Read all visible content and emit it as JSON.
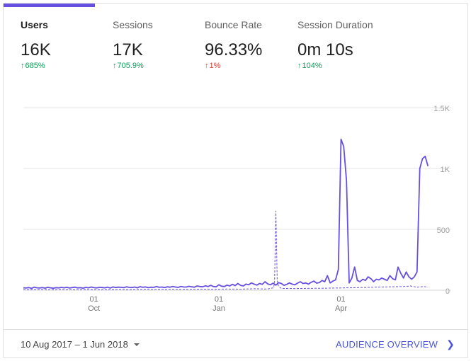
{
  "tabs": [
    {
      "title": "Users",
      "value": "16K",
      "change": "685%",
      "direction": "up",
      "color": "#0f9d58"
    },
    {
      "title": "Sessions",
      "value": "17K",
      "change": "705.9%",
      "direction": "up",
      "color": "#0f9d58"
    },
    {
      "title": "Bounce Rate",
      "value": "96.33%",
      "change": "1%",
      "direction": "up",
      "color": "#db4437"
    },
    {
      "title": "Session Duration",
      "value": "0m 10s",
      "change": "104%",
      "direction": "up",
      "color": "#0f9d58"
    }
  ],
  "active_tab": 0,
  "chart_data": {
    "type": "line",
    "x_tick_labels": [
      {
        "day": "01",
        "month": "Oct"
      },
      {
        "day": "01",
        "month": "Jan"
      },
      {
        "day": "01",
        "month": "Apr"
      }
    ],
    "y_tick_labels": [
      "1.5K",
      "1K",
      "500",
      "0"
    ],
    "ylim": [
      0,
      1500
    ],
    "grid": true,
    "series": [
      {
        "style": "solid",
        "color": "#6650e0",
        "points": [
          [
            0,
            20
          ],
          [
            2,
            18
          ],
          [
            4,
            22
          ],
          [
            6,
            15
          ],
          [
            8,
            25
          ],
          [
            10,
            20
          ],
          [
            12,
            18
          ],
          [
            14,
            22
          ],
          [
            16,
            17
          ],
          [
            18,
            24
          ],
          [
            20,
            20
          ],
          [
            22,
            16
          ],
          [
            24,
            21
          ],
          [
            26,
            19
          ],
          [
            28,
            23
          ],
          [
            30,
            20
          ],
          [
            32,
            24
          ],
          [
            34,
            18
          ],
          [
            36,
            22
          ],
          [
            38,
            25
          ],
          [
            40,
            19
          ],
          [
            42,
            21
          ],
          [
            44,
            17
          ],
          [
            46,
            23
          ],
          [
            48,
            20
          ],
          [
            50,
            26
          ],
          [
            52,
            21
          ],
          [
            54,
            19
          ],
          [
            56,
            24
          ],
          [
            58,
            22
          ],
          [
            60,
            20
          ],
          [
            62,
            25
          ],
          [
            64,
            18
          ],
          [
            66,
            27
          ],
          [
            68,
            22
          ],
          [
            70,
            25
          ],
          [
            72,
            24
          ],
          [
            74,
            21
          ],
          [
            76,
            28
          ],
          [
            78,
            23
          ],
          [
            80,
            22
          ],
          [
            82,
            26
          ],
          [
            84,
            20
          ],
          [
            86,
            29
          ],
          [
            88,
            24
          ],
          [
            90,
            27
          ],
          [
            92,
            21
          ],
          [
            94,
            25
          ],
          [
            96,
            23
          ],
          [
            98,
            30
          ],
          [
            100,
            24
          ],
          [
            102,
            26
          ],
          [
            104,
            22
          ],
          [
            106,
            28
          ],
          [
            108,
            25
          ],
          [
            110,
            30
          ],
          [
            112,
            26
          ],
          [
            114,
            23
          ],
          [
            116,
            31
          ],
          [
            118,
            27
          ],
          [
            120,
            26
          ],
          [
            122,
            32
          ],
          [
            124,
            28
          ],
          [
            126,
            25
          ],
          [
            128,
            35
          ],
          [
            130,
            30
          ],
          [
            132,
            28
          ],
          [
            134,
            36
          ],
          [
            136,
            30
          ],
          [
            138,
            40
          ],
          [
            140,
            30
          ],
          [
            142,
            28
          ],
          [
            144,
            45
          ],
          [
            146,
            33
          ],
          [
            148,
            30
          ],
          [
            150,
            42
          ],
          [
            152,
            35
          ],
          [
            154,
            48
          ],
          [
            156,
            38
          ],
          [
            158,
            55
          ],
          [
            160,
            40
          ],
          [
            162,
            35
          ],
          [
            164,
            50
          ],
          [
            166,
            45
          ],
          [
            168,
            60
          ],
          [
            170,
            50
          ],
          [
            172,
            42
          ],
          [
            174,
            55
          ],
          [
            176,
            48
          ],
          [
            178,
            70
          ],
          [
            180,
            52
          ],
          [
            182,
            45
          ],
          [
            184,
            58
          ],
          [
            186,
            42
          ],
          [
            188,
            62
          ],
          [
            190,
            55
          ],
          [
            192,
            40
          ],
          [
            194,
            48
          ],
          [
            196,
            60
          ],
          [
            198,
            50
          ],
          [
            200,
            45
          ],
          [
            202,
            58
          ],
          [
            204,
            70
          ],
          [
            206,
            55
          ],
          [
            208,
            60
          ],
          [
            210,
            50
          ],
          [
            212,
            65
          ],
          [
            214,
            75
          ],
          [
            216,
            58
          ],
          [
            218,
            62
          ],
          [
            220,
            80
          ],
          [
            222,
            70
          ],
          [
            224,
            120
          ],
          [
            226,
            60
          ],
          [
            228,
            75
          ],
          [
            230,
            85
          ],
          [
            232,
            170
          ],
          [
            234,
            1240
          ],
          [
            236,
            1180
          ],
          [
            238,
            900
          ],
          [
            240,
            60
          ],
          [
            242,
            100
          ],
          [
            244,
            190
          ],
          [
            246,
            80
          ],
          [
            248,
            70
          ],
          [
            250,
            90
          ],
          [
            252,
            80
          ],
          [
            254,
            110
          ],
          [
            256,
            95
          ],
          [
            258,
            70
          ],
          [
            260,
            90
          ],
          [
            262,
            85
          ],
          [
            264,
            100
          ],
          [
            266,
            90
          ],
          [
            268,
            80
          ],
          [
            270,
            120
          ],
          [
            272,
            95
          ],
          [
            274,
            85
          ],
          [
            276,
            190
          ],
          [
            278,
            140
          ],
          [
            280,
            100
          ],
          [
            282,
            150
          ],
          [
            284,
            110
          ],
          [
            286,
            90
          ],
          [
            288,
            110
          ],
          [
            290,
            150
          ],
          [
            292,
            1000
          ],
          [
            294,
            1080
          ],
          [
            296,
            1100
          ],
          [
            298,
            1020
          ]
        ]
      },
      {
        "style": "dashed",
        "color": "#6650e0",
        "points": [
          [
            0,
            5
          ],
          [
            10,
            6
          ],
          [
            20,
            5
          ],
          [
            30,
            6
          ],
          [
            40,
            5
          ],
          [
            50,
            7
          ],
          [
            60,
            6
          ],
          [
            70,
            7
          ],
          [
            80,
            6
          ],
          [
            90,
            8
          ],
          [
            100,
            7
          ],
          [
            110,
            8
          ],
          [
            120,
            7
          ],
          [
            130,
            9
          ],
          [
            140,
            8
          ],
          [
            150,
            10
          ],
          [
            160,
            9
          ],
          [
            170,
            12
          ],
          [
            180,
            10
          ],
          [
            184,
            20
          ],
          [
            185,
            50
          ],
          [
            186,
            650
          ],
          [
            187,
            80
          ],
          [
            188,
            30
          ],
          [
            190,
            15
          ],
          [
            200,
            14
          ],
          [
            210,
            15
          ],
          [
            220,
            16
          ],
          [
            230,
            18
          ],
          [
            240,
            20
          ],
          [
            250,
            22
          ],
          [
            260,
            25
          ],
          [
            270,
            28
          ],
          [
            280,
            30
          ],
          [
            285,
            35
          ],
          [
            290,
            25
          ],
          [
            295,
            30
          ],
          [
            298,
            25
          ]
        ]
      }
    ]
  },
  "footer": {
    "date_range": "10 Aug 2017 – 1 Jun 2018",
    "link_label": "AUDIENCE OVERVIEW",
    "link_icon": "chevron-right-icon"
  }
}
